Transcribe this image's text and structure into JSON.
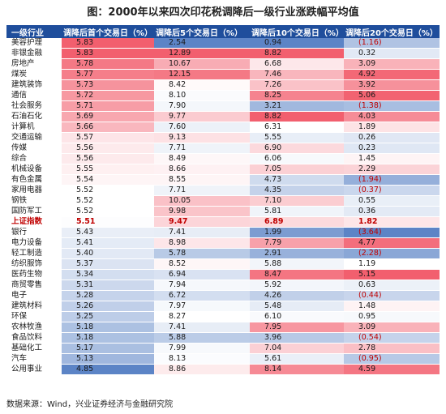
{
  "title": "图：2000年以来四次印花税调降后一级行业涨跌幅平均值",
  "source": "数据来源：Wind，兴业证券经济与金融研究院",
  "chart_data": {
    "type": "table",
    "columns": [
      "一级行业",
      "调降后首个交易日（%）",
      "调降后5个交易日（%）",
      "调降后10个交易日（%）",
      "调降后20个交易日（%）"
    ],
    "rows": [
      {
        "name": "美容护理",
        "values": [
          5.83,
          2.54,
          0.94,
          -1.16
        ]
      },
      {
        "name": "非银金融",
        "values": [
          5.83,
          12.89,
          8.82,
          0.32
        ]
      },
      {
        "name": "房地产",
        "values": [
          5.78,
          10.67,
          6.68,
          3.09
        ]
      },
      {
        "name": "煤炭",
        "values": [
          5.77,
          12.15,
          7.46,
          4.92
        ]
      },
      {
        "name": "建筑装饰",
        "values": [
          5.73,
          8.42,
          7.26,
          3.92
        ]
      },
      {
        "name": "通信",
        "values": [
          5.72,
          8.1,
          8.25,
          5.06
        ]
      },
      {
        "name": "社会服务",
        "values": [
          5.71,
          7.9,
          3.21,
          -1.38
        ]
      },
      {
        "name": "石油石化",
        "values": [
          5.69,
          9.77,
          8.82,
          4.03
        ]
      },
      {
        "name": "计算机",
        "values": [
          5.66,
          7.6,
          6.31,
          1.89
        ]
      },
      {
        "name": "交通运输",
        "values": [
          5.57,
          9.13,
          5.55,
          0.26
        ]
      },
      {
        "name": "传媒",
        "values": [
          5.56,
          7.71,
          6.9,
          0.23
        ]
      },
      {
        "name": "综合",
        "values": [
          5.56,
          8.49,
          6.06,
          1.45
        ]
      },
      {
        "name": "机械设备",
        "values": [
          5.55,
          8.66,
          7.05,
          2.29
        ]
      },
      {
        "name": "有色金属",
        "values": [
          5.54,
          8.55,
          4.73,
          -1.94
        ]
      },
      {
        "name": "家用电器",
        "values": [
          5.52,
          7.71,
          4.35,
          -0.37
        ]
      },
      {
        "name": "钢铁",
        "values": [
          5.52,
          10.05,
          7.1,
          0.55
        ]
      },
      {
        "name": "国防军工",
        "values": [
          5.52,
          9.98,
          5.81,
          0.36
        ]
      },
      {
        "name": "上证指数",
        "values": [
          5.51,
          9.47,
          6.89,
          1.82
        ],
        "highlight": true
      },
      {
        "name": "银行",
        "values": [
          5.43,
          7.41,
          1.99,
          -3.64
        ]
      },
      {
        "name": "电力设备",
        "values": [
          5.41,
          8.98,
          7.79,
          4.77
        ]
      },
      {
        "name": "轻工制造",
        "values": [
          5.4,
          5.78,
          2.91,
          -2.28
        ]
      },
      {
        "name": "纺织服饰",
        "values": [
          5.37,
          8.52,
          5.88,
          1.19
        ]
      },
      {
        "name": "医药生物",
        "values": [
          5.34,
          6.94,
          8.47,
          5.15
        ]
      },
      {
        "name": "商贸零售",
        "values": [
          5.31,
          7.94,
          5.92,
          0.63
        ]
      },
      {
        "name": "电子",
        "values": [
          5.28,
          6.72,
          4.26,
          -0.44
        ]
      },
      {
        "name": "建筑材料",
        "values": [
          5.26,
          7.97,
          5.48,
          1.48
        ]
      },
      {
        "name": "环保",
        "values": [
          5.25,
          8.27,
          6.1,
          0.95
        ]
      },
      {
        "name": "农林牧渔",
        "values": [
          5.18,
          7.41,
          7.95,
          3.09
        ]
      },
      {
        "name": "食品饮料",
        "values": [
          5.18,
          5.88,
          3.96,
          -0.54
        ]
      },
      {
        "name": "基础化工",
        "values": [
          5.17,
          7.99,
          7.04,
          2.78
        ]
      },
      {
        "name": "汽车",
        "values": [
          5.13,
          8.13,
          5.61,
          -0.95
        ]
      },
      {
        "name": "公用事业",
        "values": [
          4.85,
          8.86,
          8.14,
          4.59
        ]
      }
    ]
  }
}
